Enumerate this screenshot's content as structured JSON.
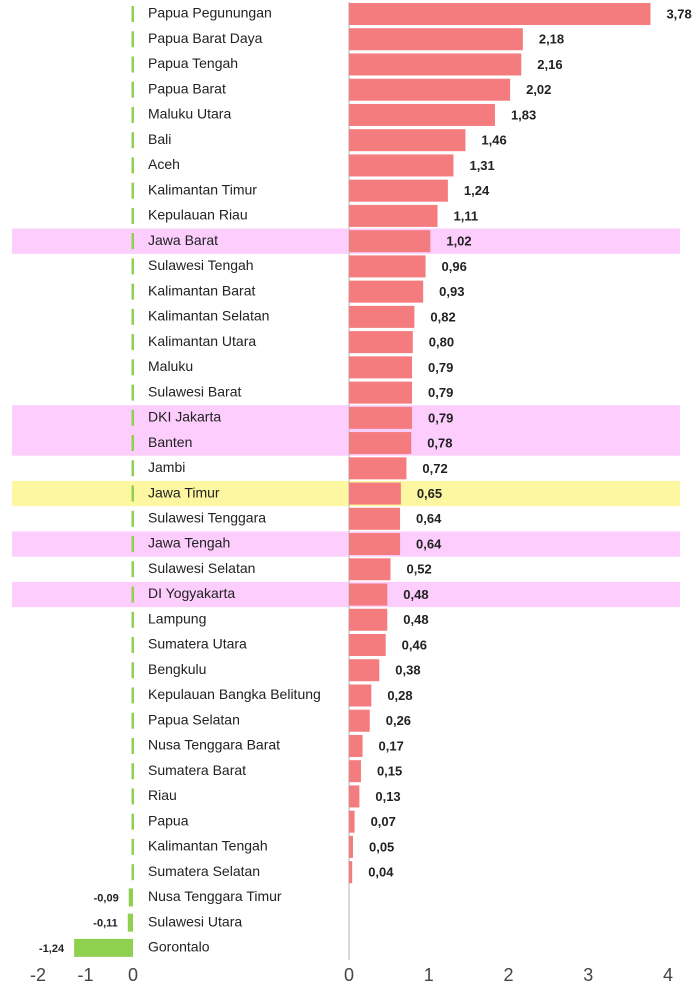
{
  "chart_data": {
    "type": "bar",
    "orientation": "horizontal",
    "categories": [
      "Papua Pegunungan",
      "Papua Barat Daya",
      "Papua Tengah",
      "Papua Barat",
      "Maluku Utara",
      "Bali",
      "Aceh",
      "Kalimantan Timur",
      "Kepulauan Riau",
      "Jawa Barat",
      "Sulawesi Tengah",
      "Kalimantan Barat",
      "Kalimantan Selatan",
      "Kalimantan Utara",
      "Maluku",
      "Sulawesi Barat",
      "DKI Jakarta",
      "Banten",
      "Jambi",
      "Jawa Timur",
      "Sulawesi Tenggara",
      "Jawa Tengah",
      "Sulawesi Selatan",
      "DI Yogyakarta",
      "Lampung",
      "Sumatera Utara",
      "Bengkulu",
      "Kepulauan Bangka Belitung",
      "Papua Selatan",
      "Nusa Tenggara Barat",
      "Sumatera Barat",
      "Riau",
      "Papua",
      "Kalimantan Tengah",
      "Sumatera Selatan",
      "Nusa Tenggara Timur",
      "Sulawesi Utara",
      "Gorontalo"
    ],
    "values": [
      3.78,
      2.18,
      2.16,
      2.02,
      1.83,
      1.46,
      1.31,
      1.24,
      1.11,
      1.02,
      0.96,
      0.93,
      0.82,
      0.8,
      0.79,
      0.79,
      0.79,
      0.78,
      0.72,
      0.65,
      0.64,
      0.64,
      0.52,
      0.48,
      0.48,
      0.46,
      0.38,
      0.28,
      0.26,
      0.17,
      0.15,
      0.13,
      0.07,
      0.05,
      0.04,
      -0.09,
      -0.11,
      -1.24
    ],
    "value_labels": [
      "3,78",
      "2,18",
      "2,16",
      "2,02",
      "1,83",
      "1,46",
      "1,31",
      "1,24",
      "1,11",
      "1,02",
      "0,96",
      "0,93",
      "0,82",
      "0,80",
      "0,79",
      "0,79",
      "0,79",
      "0,78",
      "0,72",
      "0,65",
      "0,64",
      "0,64",
      "0,52",
      "0,48",
      "0,48",
      "0,46",
      "0,38",
      "0,28",
      "0,26",
      "0,17",
      "0,15",
      "0,13",
      "0,07",
      "0,05",
      "0,04",
      "-0,09",
      "-0,11",
      "-1,24"
    ],
    "row_colors": [
      null,
      null,
      null,
      null,
      null,
      null,
      null,
      null,
      null,
      "#fccdfd",
      null,
      null,
      null,
      null,
      null,
      null,
      "#fccdfd",
      "#fccdfd",
      null,
      "#fcf7a0",
      null,
      "#fccdfd",
      null,
      "#fccdfd",
      null,
      null,
      null,
      null,
      null,
      null,
      null,
      null,
      null,
      null,
      null,
      null,
      null,
      null
    ],
    "axes": [
      {
        "xlim": [
          -2,
          0
        ],
        "xticks": [
          -2,
          -1,
          0
        ],
        "color": "#8fd14f"
      },
      {
        "xlim": [
          0,
          4
        ],
        "xticks": [
          0,
          1,
          2,
          3,
          4
        ],
        "color": "#f47b7e"
      }
    ]
  }
}
